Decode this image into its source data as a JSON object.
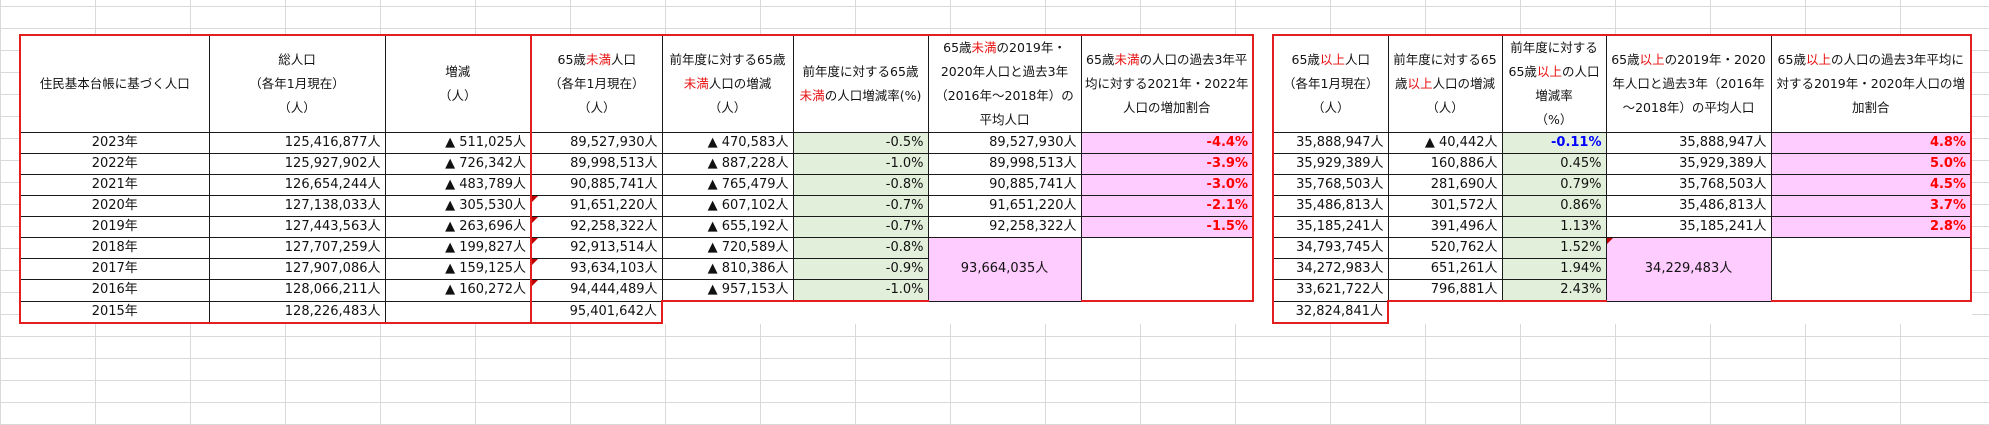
{
  "header": {
    "label": "住民基本台帳に基づく人口",
    "total": [
      "総人口",
      "（各年1月現在）",
      "（人）"
    ],
    "change": [
      "増減",
      "（人）"
    ],
    "u65_pop": {
      "pre": "65歳",
      "hl": "未満",
      "post": "人口",
      "l2": "（各年1月現在）",
      "l3": "（人）"
    },
    "u65_change": {
      "pre": "前年度に対する65歳",
      "hl": "未満",
      "post": "人口の増減",
      "l2": "（人）"
    },
    "u65_rate": {
      "pre": "前年度に対する65歳",
      "hl": "未満",
      "post": "の人口増減率(%)"
    },
    "u65_avg": {
      "pre": "65歳",
      "hl": "未満",
      "post": "の2019年・2020年人口と過去3年（2016年～2018年）の平均人口"
    },
    "u65_ratio": {
      "pre": "65歳",
      "hl": "未満",
      "post": "の人口の過去3年平均に対する2021年・2022年人口の増加割合"
    },
    "o65_pop": {
      "pre": "65歳",
      "hl": "以上",
      "post": "人口",
      "l2": "（各年1月現在）",
      "l3": "（人）"
    },
    "o65_change": {
      "pre": "前年度に対する65歳",
      "hl": "以上",
      "post": "人口の増減",
      "l2": "（人）"
    },
    "o65_rate": {
      "pre": "前年度に対する65歳",
      "hl": "以上",
      "post": "の人口増減率",
      "l2": "（%）"
    },
    "o65_avg": {
      "pre": "65歳",
      "hl": "以上",
      "post": "の2019年・2020年人口と過去3年（2016年～2018年）の平均人口"
    },
    "o65_ratio": {
      "pre": "65歳",
      "hl": "以上",
      "post": "の人口の過去3年平均に対する2019年・2020年人口の増加割合"
    }
  },
  "rows": [
    {
      "year": "2023年",
      "total": "125,416,877人",
      "change": "▲ 511,025人",
      "u_pop": "89,527,930人",
      "u_chg": "▲ 470,583人",
      "u_rate": "-0.5%",
      "u_avg": "89,527,930人",
      "u_ratio": "-4.4%",
      "o_pop": "35,888,947人",
      "o_chg": "▲ 40,442人",
      "o_rate": "-0.11%",
      "o_avg": "35,888,947人",
      "o_ratio": "4.8%"
    },
    {
      "year": "2022年",
      "total": "125,927,902人",
      "change": "▲ 726,342人",
      "u_pop": "89,998,513人",
      "u_chg": "▲ 887,228人",
      "u_rate": "-1.0%",
      "u_avg": "89,998,513人",
      "u_ratio": "-3.9%",
      "o_pop": "35,929,389人",
      "o_chg": "160,886人",
      "o_rate": "0.45%",
      "o_avg": "35,929,389人",
      "o_ratio": "5.0%"
    },
    {
      "year": "2021年",
      "total": "126,654,244人",
      "change": "▲ 483,789人",
      "u_pop": "90,885,741人",
      "u_chg": "▲ 765,479人",
      "u_rate": "-0.8%",
      "u_avg": "90,885,741人",
      "u_ratio": "-3.0%",
      "o_pop": "35,768,503人",
      "o_chg": "281,690人",
      "o_rate": "0.79%",
      "o_avg": "35,768,503人",
      "o_ratio": "4.5%"
    },
    {
      "year": "2020年",
      "total": "127,138,033人",
      "change": "▲ 305,530人",
      "u_pop": "91,651,220人",
      "u_chg": "▲ 607,102人",
      "u_rate": "-0.7%",
      "u_avg": "91,651,220人",
      "u_ratio": "-2.1%",
      "o_pop": "35,486,813人",
      "o_chg": "301,572人",
      "o_rate": "0.86%",
      "o_avg": "35,486,813人",
      "o_ratio": "3.7%"
    },
    {
      "year": "2019年",
      "total": "127,443,563人",
      "change": "▲ 263,696人",
      "u_pop": "92,258,322人",
      "u_chg": "▲ 655,192人",
      "u_rate": "-0.7%",
      "u_avg": "92,258,322人",
      "u_ratio": "-1.5%",
      "o_pop": "35,185,241人",
      "o_chg": "391,496人",
      "o_rate": "1.13%",
      "o_avg": "35,185,241人",
      "o_ratio": "2.8%"
    },
    {
      "year": "2018年",
      "total": "127,707,259人",
      "change": "▲ 199,827人",
      "u_pop": "92,913,514人",
      "u_chg": "▲ 720,589人",
      "u_rate": "-0.8%",
      "o_pop": "34,793,745人",
      "o_chg": "520,762人",
      "o_rate": "1.52%"
    },
    {
      "year": "2017年",
      "total": "127,907,086人",
      "change": "▲ 159,125人",
      "u_pop": "93,634,103人",
      "u_chg": "▲ 810,386人",
      "u_rate": "-0.9%",
      "o_pop": "34,272,983人",
      "o_chg": "651,261人",
      "o_rate": "1.94%"
    },
    {
      "year": "2016年",
      "total": "128,066,211人",
      "change": "▲ 160,272人",
      "u_pop": "94,444,489人",
      "u_chg": "▲ 957,153人",
      "u_rate": "-1.0%",
      "o_pop": "33,621,722人",
      "o_chg": "796,881人",
      "o_rate": "2.43%"
    },
    {
      "year": "2015年",
      "total": "128,226,483人",
      "u_pop": "95,401,642人",
      "o_pop": "32,824,841人"
    }
  ],
  "merged": {
    "u65_avg_past3": "93,664,035人",
    "o65_avg_past3": "34,229,483人"
  },
  "colors": {
    "accent_red": "#e41e1e",
    "green_fill": "#e2efda",
    "pink_fill": "#ffccff",
    "negative_blue": "#0000ff"
  }
}
